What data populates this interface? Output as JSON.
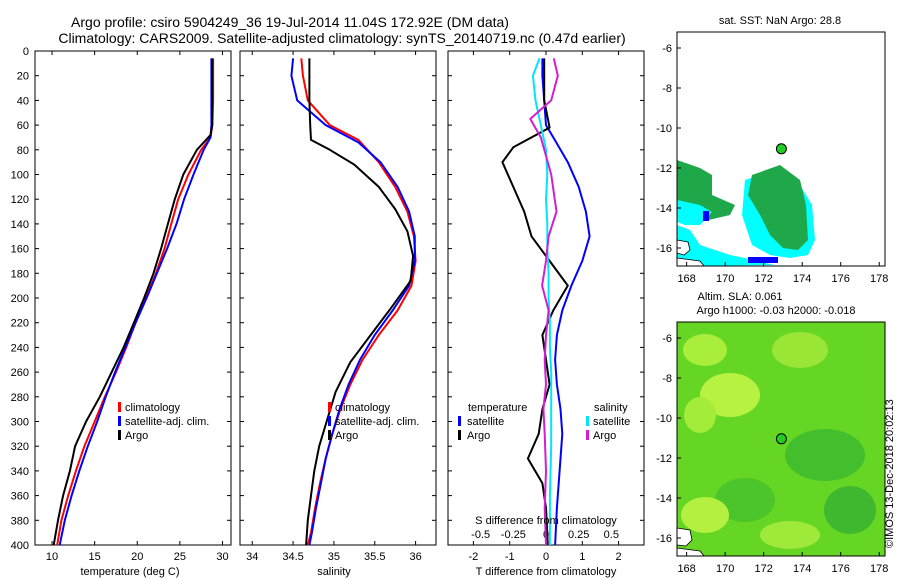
{
  "header": {
    "title_line1": "Argo profile: csiro 5904249_36 19-Jul-2014 11.04S 172.92E (DM data)",
    "title_line2": "Climatology: CARS2009. Satellite-adjusted climatology: synTS_20140719.nc (0.47d earlier)"
  },
  "colors": {
    "climatology": "#ff0000",
    "satellite": "#0000ff",
    "argo": "#000000",
    "satellite_diff": "#00e5ff",
    "argo_diff": "#d21ed2",
    "land": "#ffffff",
    "sst_cool": "#00ffff",
    "sst_warm": "#1fa84a",
    "argo_marker": "#22cc22"
  },
  "depth_axis": {
    "min": 0,
    "max": 400,
    "ticks": [
      "0",
      "20",
      "40",
      "60",
      "80",
      "100",
      "120",
      "140",
      "160",
      "180",
      "200",
      "220",
      "240",
      "260",
      "280",
      "300",
      "320",
      "340",
      "360",
      "380",
      "400"
    ]
  },
  "panels": {
    "temperature": {
      "xlabel": "temperature (deg C)",
      "xlim": [
        8,
        31
      ],
      "xticks": [
        10,
        15,
        20,
        25,
        30
      ],
      "xtick_labels": [
        "10",
        "15",
        "20",
        "25",
        "30"
      ],
      "legend": [
        "climatology",
        "satellite-adj. clim.",
        "Argo"
      ]
    },
    "salinity": {
      "xlabel": "salinity",
      "xlim": [
        33.85,
        36.25
      ],
      "xticks": [
        34,
        34.5,
        35,
        35.5,
        36
      ],
      "xtick_labels": [
        "34",
        "34.5",
        "35",
        "35.5",
        "36"
      ],
      "legend": [
        "climatology",
        "satellite-adj. clim.",
        "Argo"
      ]
    },
    "difference": {
      "xlabel": "T difference from climatology",
      "xlim": [
        -2.7,
        2.7
      ],
      "xticks": [
        -2,
        -1,
        0,
        1,
        2
      ],
      "xtick_labels": [
        "-2",
        "-1",
        "0",
        "1",
        "2"
      ],
      "s_label": "S difference from climatology",
      "s_ticks": [
        -0.5,
        -0.25,
        0,
        0.25,
        0.5
      ],
      "s_tick_labels": [
        "-0.5",
        "-0.25",
        "0",
        "0.25",
        "0.5"
      ],
      "legend_temperature_title": "temperature",
      "legend_temperature": [
        "satellite",
        "Argo"
      ],
      "legend_salinity_title": "salinity",
      "legend_salinity": [
        "satellite",
        "Argo"
      ]
    }
  },
  "maps": {
    "sst": {
      "title": "sat. SST: NaN Argo: 28.8",
      "xticks": [
        168,
        170,
        172,
        174,
        176,
        178
      ],
      "yticks": [
        -6,
        -8,
        -10,
        -12,
        -14,
        -16
      ],
      "xlim": [
        167.5,
        178.3
      ],
      "ylim": [
        -16.9,
        -5.2
      ]
    },
    "sla": {
      "title1": "Altim. SLA: 0.061",
      "title2": "Argo h1000: -0.03 h2000: -0.018",
      "xticks": [
        168,
        170,
        172,
        174,
        176,
        178
      ],
      "yticks": [
        -6,
        -8,
        -10,
        -12,
        -14,
        -16
      ],
      "xlim": [
        167.5,
        178.3
      ],
      "ylim": [
        -16.9,
        -5.2
      ]
    },
    "argo_position": {
      "lon": 172.92,
      "lat": -11.04
    }
  },
  "credit": "©IMOS 13-Dec-2018 20:02:13",
  "chart_data": [
    {
      "type": "line",
      "title": "",
      "xlabel": "temperature (deg C)",
      "ylabel": "depth",
      "xlim": [
        8,
        31
      ],
      "ylim": [
        400,
        0
      ],
      "series": [
        {
          "name": "climatology",
          "color": "#ff0000",
          "x": [
            28.9,
            28.9,
            28.9,
            28.8,
            28.6,
            27.5,
            26.0,
            24.8,
            24.0,
            23.2,
            22.2,
            21.0,
            19.8,
            18.7,
            17.5,
            16.2,
            15.0,
            13.8,
            12.8,
            11.9,
            11.1,
            10.6
          ],
          "depth": [
            6,
            20,
            40,
            60,
            70,
            80,
            100,
            120,
            140,
            160,
            180,
            200,
            220,
            240,
            260,
            280,
            300,
            320,
            340,
            360,
            380,
            400
          ]
        },
        {
          "name": "satellite-adj. clim.",
          "color": "#0000ff",
          "x": [
            28.7,
            28.7,
            28.7,
            28.7,
            28.6,
            27.8,
            26.6,
            25.5,
            24.6,
            23.5,
            22.3,
            21.1,
            19.8,
            18.6,
            17.4,
            16.3,
            15.3,
            14.2,
            13.2,
            12.3,
            11.5,
            10.9
          ],
          "depth": [
            6,
            20,
            40,
            60,
            70,
            80,
            100,
            120,
            140,
            160,
            180,
            200,
            220,
            240,
            260,
            280,
            300,
            320,
            340,
            360,
            380,
            400
          ]
        },
        {
          "name": "Argo",
          "color": "#000000",
          "x": [
            28.8,
            28.8,
            28.8,
            28.8,
            28.6,
            27.0,
            25.4,
            24.4,
            23.6,
            22.8,
            21.9,
            20.8,
            19.6,
            18.4,
            17.0,
            15.6,
            14.0,
            12.7,
            12.1,
            11.3,
            10.7,
            10.2
          ],
          "depth": [
            6,
            20,
            40,
            60,
            68,
            80,
            100,
            120,
            140,
            160,
            180,
            200,
            220,
            240,
            260,
            280,
            300,
            320,
            340,
            360,
            380,
            400
          ]
        }
      ]
    },
    {
      "type": "line",
      "title": "",
      "xlabel": "salinity",
      "ylabel": "depth",
      "xlim": [
        33.85,
        36.25
      ],
      "ylim": [
        400,
        0
      ],
      "series": [
        {
          "name": "climatology",
          "color": "#ff0000",
          "x": [
            34.6,
            34.62,
            34.68,
            34.95,
            35.3,
            35.55,
            35.75,
            35.9,
            35.98,
            36.0,
            35.95,
            35.78,
            35.55,
            35.35,
            35.2,
            35.08,
            34.98,
            34.9,
            34.83,
            34.77,
            34.72,
            34.68
          ],
          "depth": [
            6,
            20,
            40,
            60,
            72,
            90,
            110,
            130,
            150,
            170,
            190,
            210,
            230,
            250,
            270,
            290,
            310,
            330,
            350,
            370,
            390,
            400
          ]
        },
        {
          "name": "satellite-adj. clim.",
          "color": "#0000ff",
          "x": [
            34.5,
            34.48,
            34.55,
            34.9,
            35.3,
            35.57,
            35.78,
            35.92,
            35.99,
            35.99,
            35.92,
            35.72,
            35.5,
            35.32,
            35.18,
            35.07,
            34.98,
            34.9,
            34.84,
            34.78,
            34.73,
            34.7
          ],
          "depth": [
            6,
            20,
            40,
            60,
            74,
            90,
            110,
            130,
            150,
            170,
            190,
            210,
            230,
            250,
            270,
            290,
            310,
            330,
            350,
            370,
            390,
            400
          ]
        },
        {
          "name": "Argo",
          "color": "#000000",
          "x": [
            34.7,
            34.7,
            34.7,
            34.71,
            34.72,
            34.95,
            35.25,
            35.55,
            35.75,
            35.9,
            35.97,
            35.94,
            35.7,
            35.45,
            35.2,
            35.02,
            34.92,
            34.82,
            34.76,
            34.72,
            34.68,
            34.66
          ],
          "depth": [
            6,
            20,
            40,
            60,
            72,
            80,
            92,
            110,
            128,
            146,
            166,
            186,
            208,
            230,
            252,
            276,
            298,
            320,
            340,
            360,
            380,
            400
          ]
        }
      ]
    },
    {
      "type": "line",
      "title": "",
      "xlabel": "T difference from climatology",
      "ylabel": "depth",
      "xlim": [
        -2.7,
        2.7
      ],
      "ylim": [
        400,
        0
      ],
      "series": [
        {
          "name": "temperature satellite",
          "color": "#0000ff",
          "x": [
            -0.1,
            -0.1,
            -0.05,
            0.0,
            0.2,
            0.6,
            0.9,
            1.1,
            1.2,
            1.0,
            0.7,
            0.45,
            0.3,
            0.25,
            0.3,
            0.4,
            0.45,
            0.4,
            0.35,
            0.3,
            0.25
          ],
          "depth": [
            6,
            20,
            40,
            60,
            70,
            90,
            110,
            130,
            150,
            170,
            190,
            210,
            230,
            250,
            270,
            290,
            310,
            330,
            350,
            370,
            400
          ]
        },
        {
          "name": "temperature Argo",
          "color": "#000000",
          "x": [
            -0.05,
            -0.05,
            -0.05,
            0.1,
            -0.9,
            -1.2,
            -0.9,
            -0.6,
            -0.4,
            0.1,
            0.6,
            0.2,
            -0.1,
            0.0,
            0.1,
            -0.1,
            -0.2,
            -0.5,
            -0.1,
            0.0,
            0.05
          ],
          "depth": [
            6,
            20,
            40,
            62,
            78,
            90,
            110,
            130,
            150,
            170,
            190,
            210,
            230,
            250,
            270,
            290,
            310,
            330,
            350,
            370,
            400
          ]
        },
        {
          "name": "salinity satellite",
          "color": "#00e5ff",
          "x": [
            -0.05,
            -0.1,
            -0.08,
            -0.04,
            0.0,
            0.01,
            0.0,
            0.01,
            0.01,
            0.02,
            0.02,
            0.03,
            0.03,
            0.04,
            0.04,
            0.04,
            0.04,
            0.03,
            0.03
          ],
          "depth": [
            6,
            20,
            40,
            60,
            80,
            100,
            120,
            140,
            160,
            180,
            200,
            220,
            240,
            260,
            280,
            300,
            320,
            360,
            400
          ]
        },
        {
          "name": "salinity Argo",
          "color": "#d21ed2",
          "x": [
            0.06,
            0.09,
            0.04,
            -0.12,
            -0.04,
            0.04,
            0.08,
            0.02,
            0.0,
            -0.03,
            0.02,
            0.0,
            -0.01,
            0.0,
            -0.02,
            -0.01,
            0.0,
            -0.01,
            0.0
          ],
          "depth": [
            6,
            20,
            40,
            55,
            70,
            100,
            130,
            150,
            170,
            190,
            210,
            230,
            250,
            270,
            290,
            310,
            340,
            370,
            400
          ]
        }
      ]
    }
  ]
}
